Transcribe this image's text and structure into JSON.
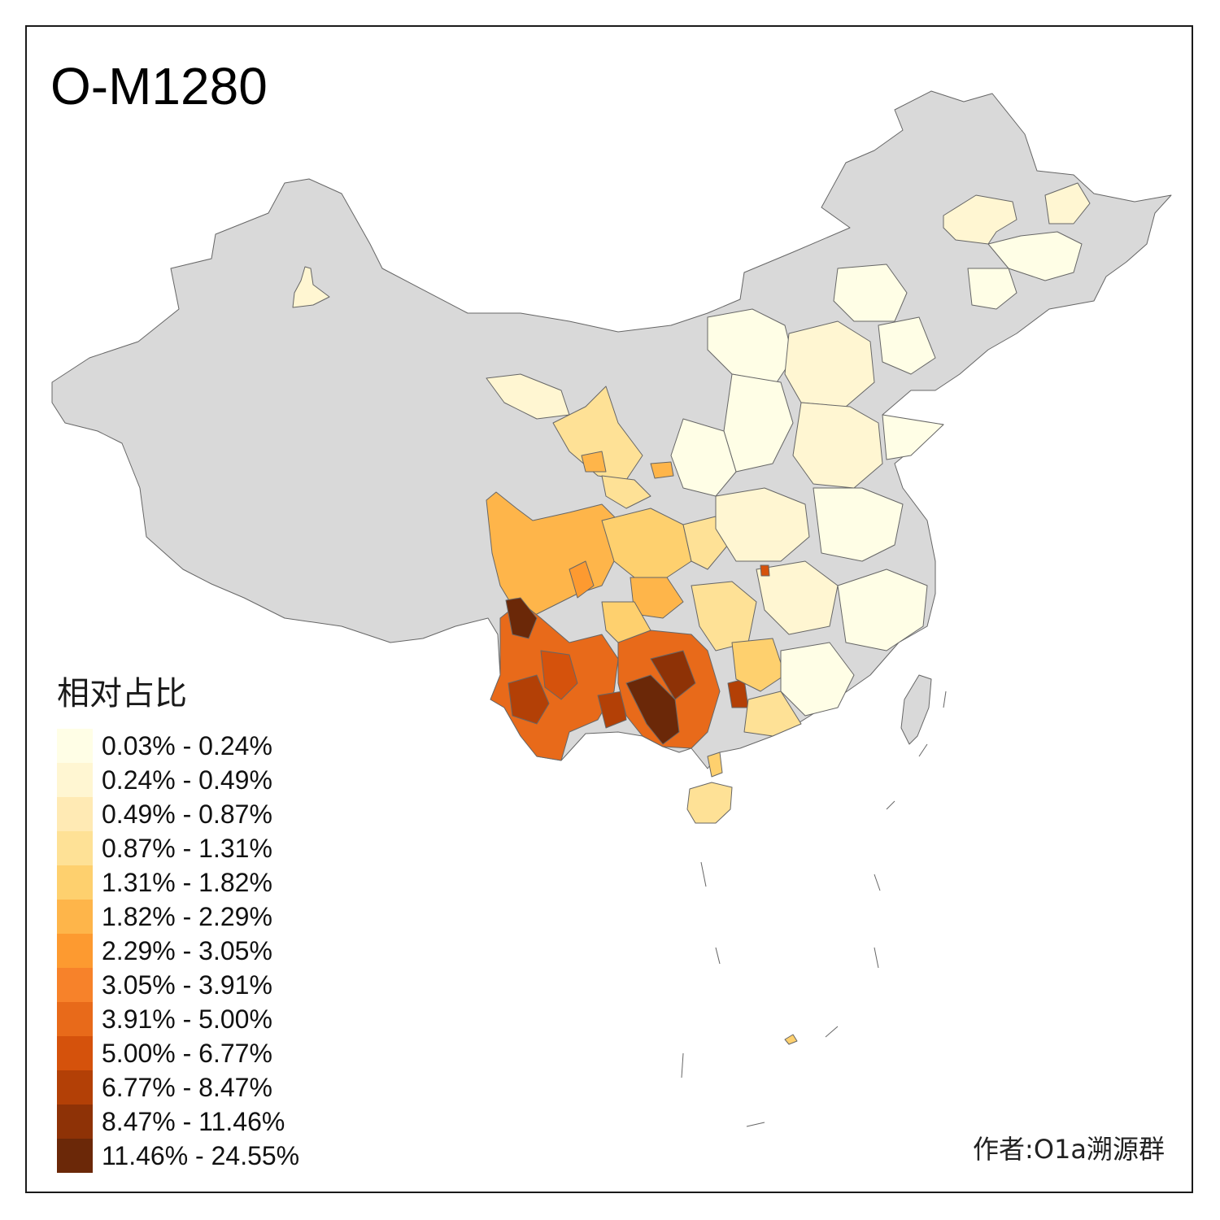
{
  "title": "O-M1280",
  "legend": {
    "title": "相对占比",
    "items": [
      {
        "label": "0.03% - 0.24%",
        "color": "#fffee6"
      },
      {
        "label": "0.24% - 0.49%",
        "color": "#fff6d2"
      },
      {
        "label": "0.49% - 0.87%",
        "color": "#ffeab4"
      },
      {
        "label": "0.87% - 1.31%",
        "color": "#fee196"
      },
      {
        "label": "1.31% - 1.82%",
        "color": "#fed06e"
      },
      {
        "label": "1.82% - 2.29%",
        "color": "#feb54a"
      },
      {
        "label": "2.29% - 3.05%",
        "color": "#fd9a30"
      },
      {
        "label": "3.05% - 3.91%",
        "color": "#f7822a"
      },
      {
        "label": "3.91% - 5.00%",
        "color": "#e86a1a"
      },
      {
        "label": "5.00% - 6.77%",
        "color": "#d5520c"
      },
      {
        "label": "6.77% - 8.47%",
        "color": "#b34006"
      },
      {
        "label": "8.47% - 11.46%",
        "color": "#8e3206"
      },
      {
        "label": "11.46% - 24.55%",
        "color": "#6b2808"
      }
    ]
  },
  "no_data_color": "#d9d9d9",
  "credit": "作者:O1a溯源群"
}
